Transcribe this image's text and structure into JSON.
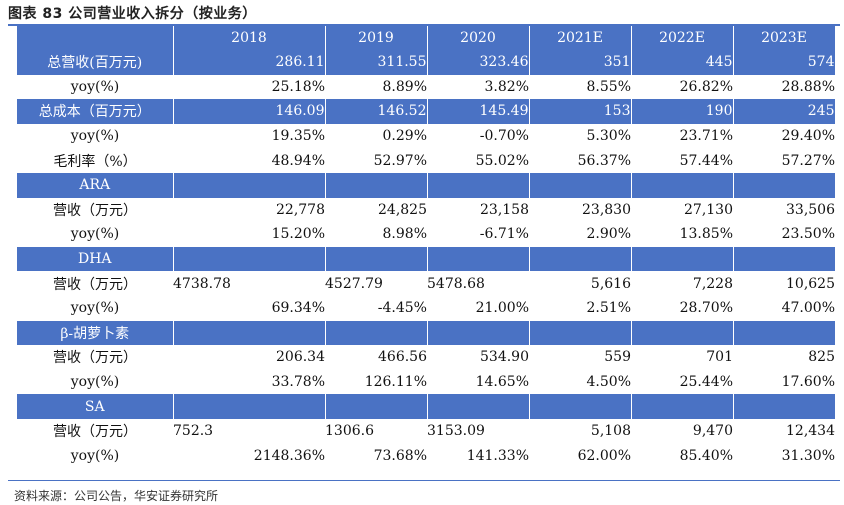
{
  "title": "图表 83 公司营业收入拆分（按业务）",
  "header": [
    "",
    "2018",
    "2019",
    "2020",
    "2021E",
    "2022E",
    "2023E"
  ],
  "rows": [
    {
      "style": "blue",
      "label": "总营收(百万元)",
      "values": [
        "286.11",
        "311.55",
        "323.46",
        "351",
        "445",
        "574"
      ]
    },
    {
      "style": "white",
      "label": "yoy(%)",
      "values": [
        "25.18%",
        "8.89%",
        "3.82%",
        "8.55%",
        "26.82%",
        "28.88%"
      ]
    },
    {
      "style": "blue",
      "label": "总成本（百万元）",
      "values": [
        "146.09",
        "146.52",
        "145.49",
        "153",
        "190",
        "245"
      ]
    },
    {
      "style": "white",
      "label": "yoy(%)",
      "values": [
        "19.35%",
        "0.29%",
        "-0.70%",
        "5.30%",
        "23.71%",
        "29.40%"
      ]
    },
    {
      "style": "white",
      "label": "毛利率（%）",
      "values": [
        "48.94%",
        "52.97%",
        "55.02%",
        "56.37%",
        "57.44%",
        "57.27%"
      ]
    },
    {
      "style": "blue",
      "label": "ARA",
      "values": [
        "",
        "",
        "",
        "",
        "",
        ""
      ]
    },
    {
      "style": "white",
      "label": "营收（万元）",
      "values": [
        "22,778",
        "24,825",
        "23,158",
        "23,830",
        "27,130",
        "33,506"
      ]
    },
    {
      "style": "white",
      "label": "yoy(%)",
      "values": [
        "15.20%",
        "8.98%",
        "-6.71%",
        "2.90%",
        "13.85%",
        "23.50%"
      ]
    },
    {
      "style": "blue",
      "label": "DHA",
      "values": [
        "",
        "",
        "",
        "",
        "",
        ""
      ]
    },
    {
      "style": "white",
      "label": "营收（万元）",
      "values": [
        "4738.78",
        "4527.79",
        "5478.68",
        "5,616",
        "7,228",
        "10,625"
      ],
      "left_cols": [
        0,
        1,
        2
      ]
    },
    {
      "style": "white",
      "label": "yoy(%)",
      "values": [
        "69.34%",
        "-4.45%",
        "21.00%",
        "2.51%",
        "28.70%",
        "47.00%"
      ]
    },
    {
      "style": "blue",
      "label": "β-胡萝卜素",
      "values": [
        "",
        "",
        "",
        "",
        "",
        ""
      ]
    },
    {
      "style": "white",
      "label": "营收（万元）",
      "values": [
        "206.34",
        "466.56",
        "534.90",
        "559",
        "701",
        "825"
      ]
    },
    {
      "style": "white",
      "label": "yoy(%)",
      "values": [
        "33.78%",
        "126.11%",
        "14.65%",
        "4.50%",
        "25.44%",
        "17.60%"
      ]
    },
    {
      "style": "blue",
      "label": "SA",
      "values": [
        "",
        "",
        "",
        "",
        "",
        ""
      ]
    },
    {
      "style": "white",
      "label": "营收（万元）",
      "values": [
        "752.3",
        "1306.6",
        "3153.09",
        "5,108",
        "9,470",
        "12,434"
      ],
      "left_cols": [
        0,
        1,
        2
      ]
    },
    {
      "style": "white",
      "label": "yoy(%)",
      "values": [
        "2148.36%",
        "73.68%",
        "141.33%",
        "62.00%",
        "85.40%",
        "31.30%"
      ]
    }
  ],
  "source": "资料来源：公司公告，华安证券研究所",
  "colors": {
    "header_blue": "#4a72c4"
  }
}
